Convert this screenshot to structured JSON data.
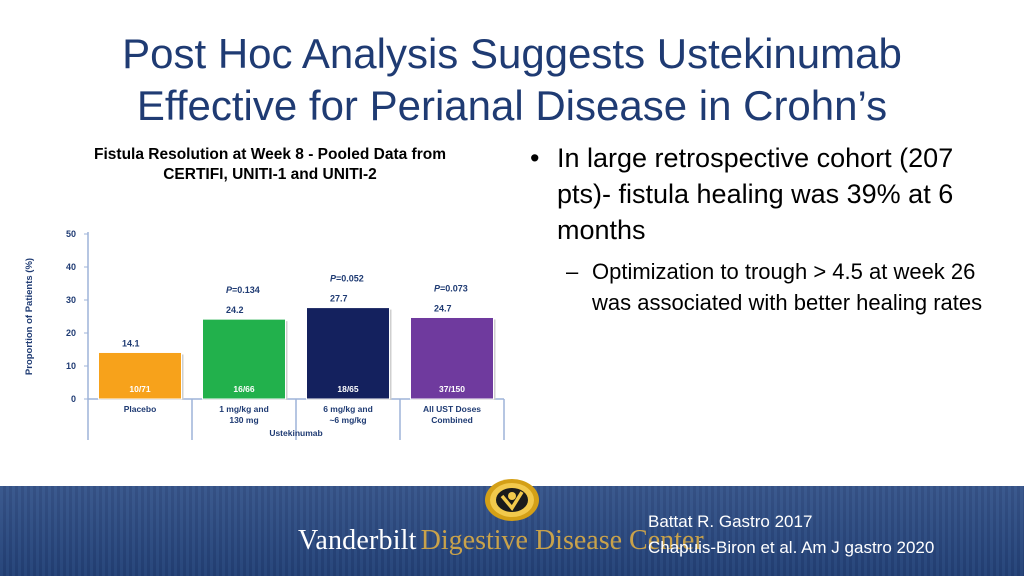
{
  "slide": {
    "title_line1": "Post Hoc Analysis Suggests Ustekinumab",
    "title_line2": "Effective for Perianal Disease in Crohn’s"
  },
  "chart_caption": {
    "line1": "Fistula Resolution at Week 8 - Pooled Data from",
    "line2": "CERTIFI, UNITI-1 and UNITI-2"
  },
  "chart_data": {
    "type": "bar",
    "title": "Fistula Resolution at Week 8 - Pooled Data from CERTIFI, UNITI-1 and UNITI-2",
    "ylabel": "Proportion of Patients (%)",
    "xlabel": "",
    "ylim": [
      0,
      50
    ],
    "yticks": [
      0,
      10,
      20,
      30,
      40,
      50
    ],
    "categories": [
      [
        "Placebo"
      ],
      [
        "1 mg/kg and",
        "130 mg"
      ],
      [
        "6 mg/kg and",
        "~6 mg/kg"
      ],
      [
        "All UST Doses",
        "Combined"
      ]
    ],
    "group_label": "Ustekinumab",
    "values": [
      14.1,
      24.2,
      27.7,
      24.7
    ],
    "counts": [
      "10/71",
      "16/66",
      "18/65",
      "37/150"
    ],
    "p_values": [
      "",
      "=0.134",
      "=0.052",
      "=0.073"
    ],
    "p_symbol": "P",
    "colors": [
      "#f7a21b",
      "#22b14c",
      "#14215e",
      "#6f3a9e"
    ]
  },
  "bullets": {
    "main": "In large retrospective cohort (207 pts)- fistula healing was 39% at 6 months",
    "marker": "•",
    "sub": "Optimization to trough > 4.5 at week 26 was associated with better healing rates",
    "sub_marker": "–"
  },
  "footer": {
    "brand_white": "Vanderbilt",
    "brand_gold": "Digestive Disease Center",
    "ref1": "Battat R. Gastro 2017",
    "ref2": "Chapuis-Biron et al. Am J gastro 2020"
  }
}
